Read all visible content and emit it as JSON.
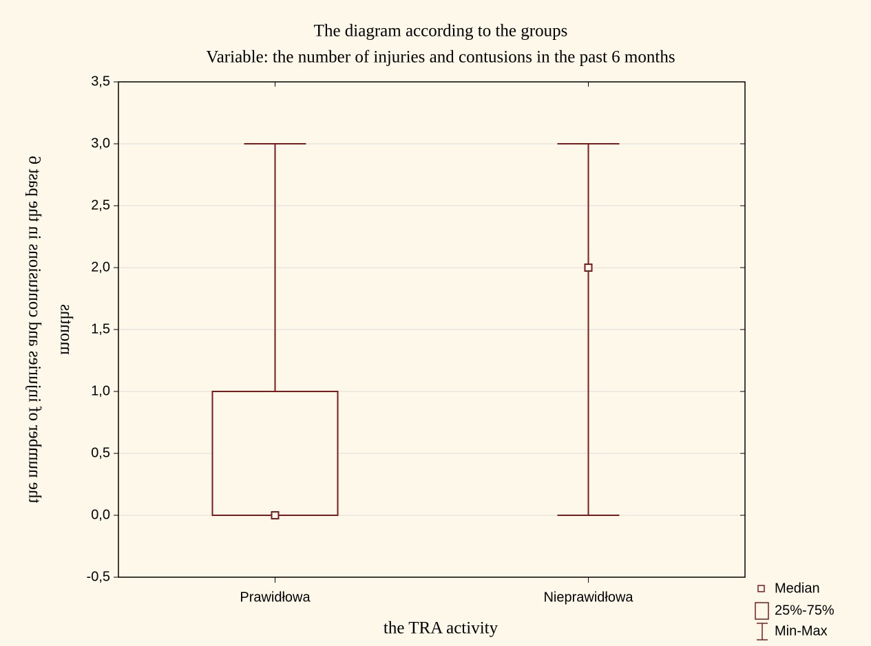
{
  "chart_data": {
    "type": "box",
    "title": [
      "The diagram according to the groups",
      "Variable: the number of injuries and contusions in the past 6 months"
    ],
    "xlabel": "the TRA activity",
    "ylabel": [
      "the number of injuries and contusions in the past 6",
      "months"
    ],
    "categories": [
      "Prawidłowa",
      "Nieprawidłowa"
    ],
    "median": [
      0,
      2
    ],
    "q1": [
      0,
      2
    ],
    "q3": [
      1,
      2
    ],
    "min": [
      0,
      0
    ],
    "max": [
      3,
      3
    ],
    "color": "#7b1a1a",
    "ylim": [
      -0.5,
      3.5
    ],
    "yticks": [
      {
        "value": -0.5,
        "label": "-0,5"
      },
      {
        "value": 0,
        "label": "0,0"
      },
      {
        "value": 0.5,
        "label": "0,5"
      },
      {
        "value": 1,
        "label": "1,0"
      },
      {
        "value": 1.5,
        "label": "1,5"
      },
      {
        "value": 2,
        "label": "2,0"
      },
      {
        "value": 2.5,
        "label": "2,5"
      },
      {
        "value": 3,
        "label": "3,0"
      },
      {
        "value": 3.5,
        "label": "3,5"
      }
    ],
    "grid": true,
    "legend": [
      "Median",
      "25%-75%",
      "Min-Max"
    ]
  }
}
